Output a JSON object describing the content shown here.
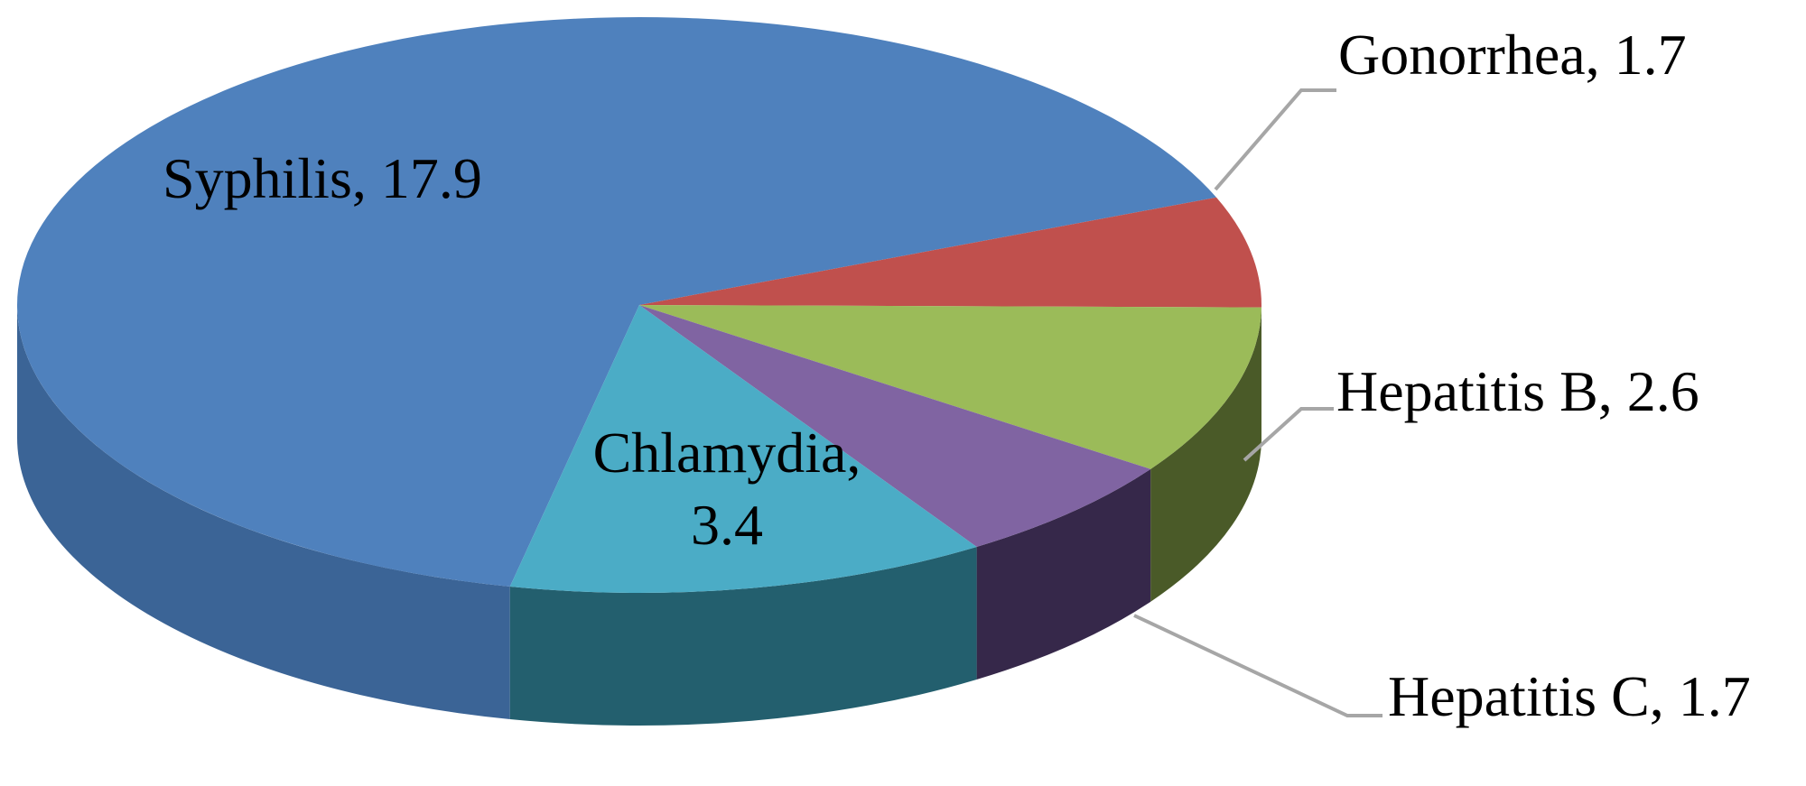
{
  "chart_data": {
    "type": "pie",
    "categories": [
      "Syphilis",
      "Gonorrhea",
      "Hepatitis B",
      "Hepatitis C",
      "Chlamydia"
    ],
    "values": [
      17.9,
      1.7,
      2.6,
      1.7,
      3.4
    ],
    "value_labels": [
      "Syphilis, 17.9",
      "Gonorrhea, 1.7",
      "Hepatitis B, 2.6",
      "Hepatitis C, 1.7",
      "Chlamydia, 3.4"
    ],
    "colors": [
      "#4f81bd",
      "#c0504d",
      "#9bbb59",
      "#8064a2",
      "#4bacc6"
    ],
    "side_colors": [
      "#3b6496",
      "#8c3a38",
      "#4a5a28",
      "#36284a",
      "#235f6e"
    ]
  }
}
